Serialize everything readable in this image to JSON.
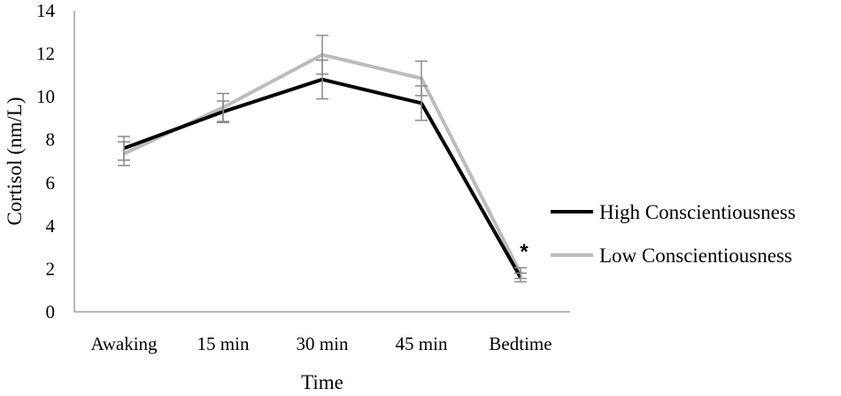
{
  "chart_data": {
    "type": "line",
    "categories": [
      "Awaking",
      "15 min",
      "30 min",
      "45 min",
      "Bedtime"
    ],
    "xlabel": "Time",
    "ylabel": "Cortisol (nm/L)",
    "ylim": [
      0,
      14
    ],
    "yticks": [
      0,
      2,
      4,
      6,
      8,
      10,
      12,
      14
    ],
    "grid": false,
    "legend_position": "right",
    "series": [
      {
        "name": "High Conscientiousness",
        "color": "#000000",
        "values": [
          7.6,
          9.3,
          10.8,
          9.7,
          1.6
        ],
        "error": [
          0.55,
          0.5,
          0.9,
          0.8,
          0.2
        ]
      },
      {
        "name": "Low Conscientiousness",
        "color": "#bdbbbc",
        "values": [
          7.35,
          9.5,
          11.95,
          10.85,
          1.8
        ],
        "error": [
          0.55,
          0.65,
          0.9,
          0.8,
          0.25
        ]
      }
    ],
    "error_bar_color": "#8a8a8a",
    "annotations": [
      {
        "text": "*",
        "category": "Bedtime"
      }
    ]
  }
}
